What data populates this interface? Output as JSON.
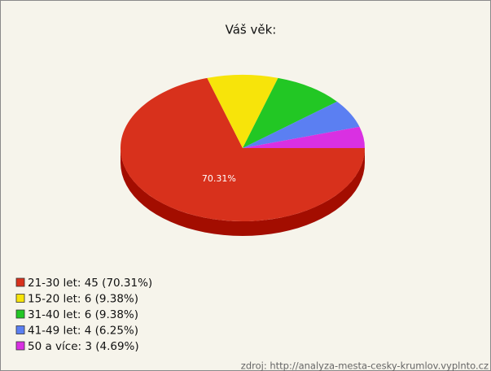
{
  "chart_data": {
    "type": "pie",
    "title": "Váš věk:",
    "categories": [
      "21-30 let: 45 (70.31%)",
      "15-20 let: 6 (9.38%)",
      "31-40 let: 6 (9.38%)",
      "41-49 let: 4 (6.25%)",
      "50 a více: 3 (4.69%)"
    ],
    "values": [
      70.31,
      9.38,
      9.38,
      6.25,
      4.69
    ],
    "value_labels": [
      "70.31%",
      null,
      null,
      null,
      null
    ],
    "colors": [
      "#d8311c",
      "#f7e40a",
      "#22c724",
      "#5b7ff2",
      "#d930e2"
    ],
    "side_colors": [
      "#a30d00",
      "#b8a600",
      "#139016",
      "#3454b8",
      "#9a1ba3"
    ],
    "legend": "bottom-left",
    "source": "zdroj: http://analyza-mesta-cesky-krumlov.vyplnto.cz"
  }
}
